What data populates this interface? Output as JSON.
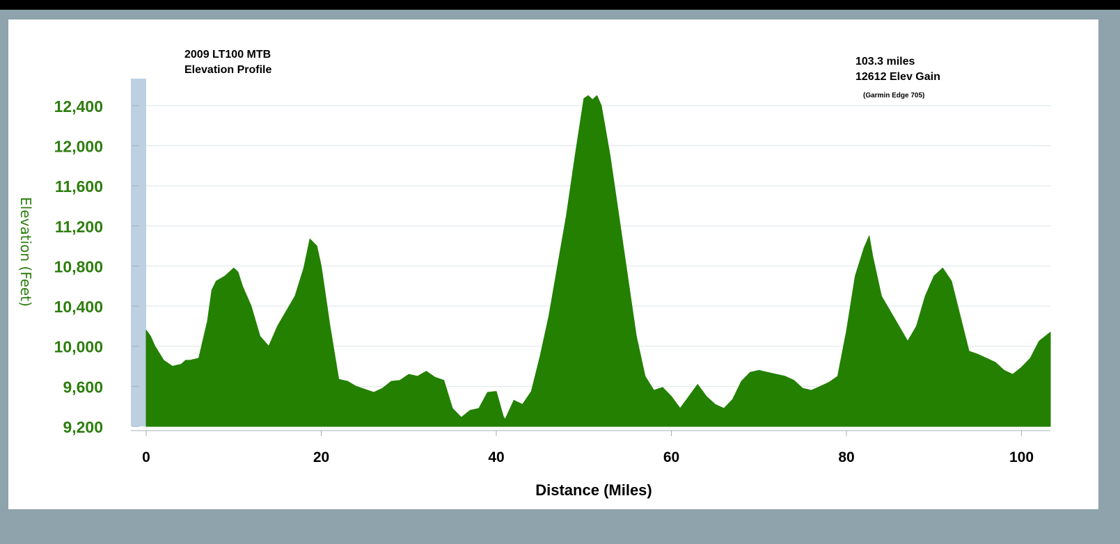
{
  "header": {
    "title_line1": "2009 LT100 MTB",
    "title_line2": "Elevation Profile"
  },
  "stats": {
    "distance": "103.3 miles",
    "elev_gain": "12612 Elev Gain",
    "device": "(Garmin Edge 705)"
  },
  "colors": {
    "fill": "#238000",
    "axis_text": "#2e7d0f",
    "y_band": "#bcd0e2",
    "background": "#8ea3ab"
  },
  "chart_data": {
    "type": "area",
    "title": "2009 LT100 MTB Elevation Profile",
    "xlabel": "Distance (Miles)",
    "ylabel": "Elevation (Feet)",
    "xlim": [
      0,
      103.3
    ],
    "ylim": [
      9200,
      12600
    ],
    "x_ticks": [
      0,
      20,
      40,
      60,
      80,
      100
    ],
    "x_tick_labels": [
      "0",
      "20",
      "40",
      "60",
      "80",
      "100"
    ],
    "y_ticks": [
      9200,
      9600,
      10000,
      10400,
      10800,
      11200,
      11600,
      12000,
      12400
    ],
    "y_tick_labels": [
      "9,200",
      "9,600",
      "10,000",
      "10,400",
      "10,800",
      "11,200",
      "11,600",
      "12,000",
      "12,400"
    ],
    "grid": true,
    "series": [
      {
        "x": [
          0,
          0.5,
          1,
          2,
          3,
          4,
          4.5,
          5,
          6,
          7,
          7.5,
          8,
          9,
          10,
          10.5,
          11,
          12,
          13,
          14,
          15,
          16,
          17,
          18,
          18.7,
          19.5,
          20,
          21,
          22,
          23,
          24,
          25,
          26,
          27,
          28,
          29,
          30,
          31,
          32,
          33,
          34,
          35,
          36,
          37,
          38,
          39,
          40,
          40.8,
          41,
          42,
          43,
          44,
          45,
          46,
          47,
          48,
          49,
          50,
          50.5,
          51,
          51.5,
          52,
          53,
          54,
          55,
          56,
          57,
          58,
          59,
          60,
          61,
          62,
          63,
          64,
          65,
          66,
          67,
          68,
          69,
          70,
          71,
          72,
          73,
          74,
          75,
          76,
          77,
          78,
          79,
          80,
          81,
          82,
          82.6,
          83,
          84,
          85,
          86,
          87,
          88,
          89,
          90,
          91,
          92,
          93,
          94,
          95,
          96,
          97,
          98,
          99,
          100,
          101,
          102,
          103.3
        ],
        "y": [
          10160,
          10100,
          10000,
          9860,
          9800,
          9820,
          9860,
          9860,
          9880,
          10250,
          10560,
          10650,
          10700,
          10780,
          10740,
          10600,
          10400,
          10100,
          10000,
          10200,
          10350,
          10500,
          10780,
          11070,
          11000,
          10800,
          10200,
          9670,
          9650,
          9600,
          9570,
          9540,
          9580,
          9650,
          9660,
          9720,
          9700,
          9750,
          9690,
          9660,
          9380,
          9290,
          9360,
          9380,
          9540,
          9550,
          9300,
          9270,
          9460,
          9420,
          9550,
          9900,
          10300,
          10800,
          11300,
          11900,
          12470,
          12500,
          12460,
          12500,
          12400,
          11900,
          11300,
          10700,
          10100,
          9700,
          9560,
          9590,
          9500,
          9380,
          9500,
          9620,
          9500,
          9420,
          9380,
          9470,
          9650,
          9740,
          9760,
          9740,
          9720,
          9700,
          9660,
          9580,
          9560,
          9600,
          9640,
          9700,
          10150,
          10700,
          10980,
          11100,
          10900,
          10500,
          10350,
          10200,
          10050,
          10200,
          10500,
          10700,
          10780,
          10650,
          10300,
          9950,
          9920,
          9880,
          9840,
          9760,
          9720,
          9790,
          9880,
          10050,
          10140
        ]
      }
    ]
  }
}
